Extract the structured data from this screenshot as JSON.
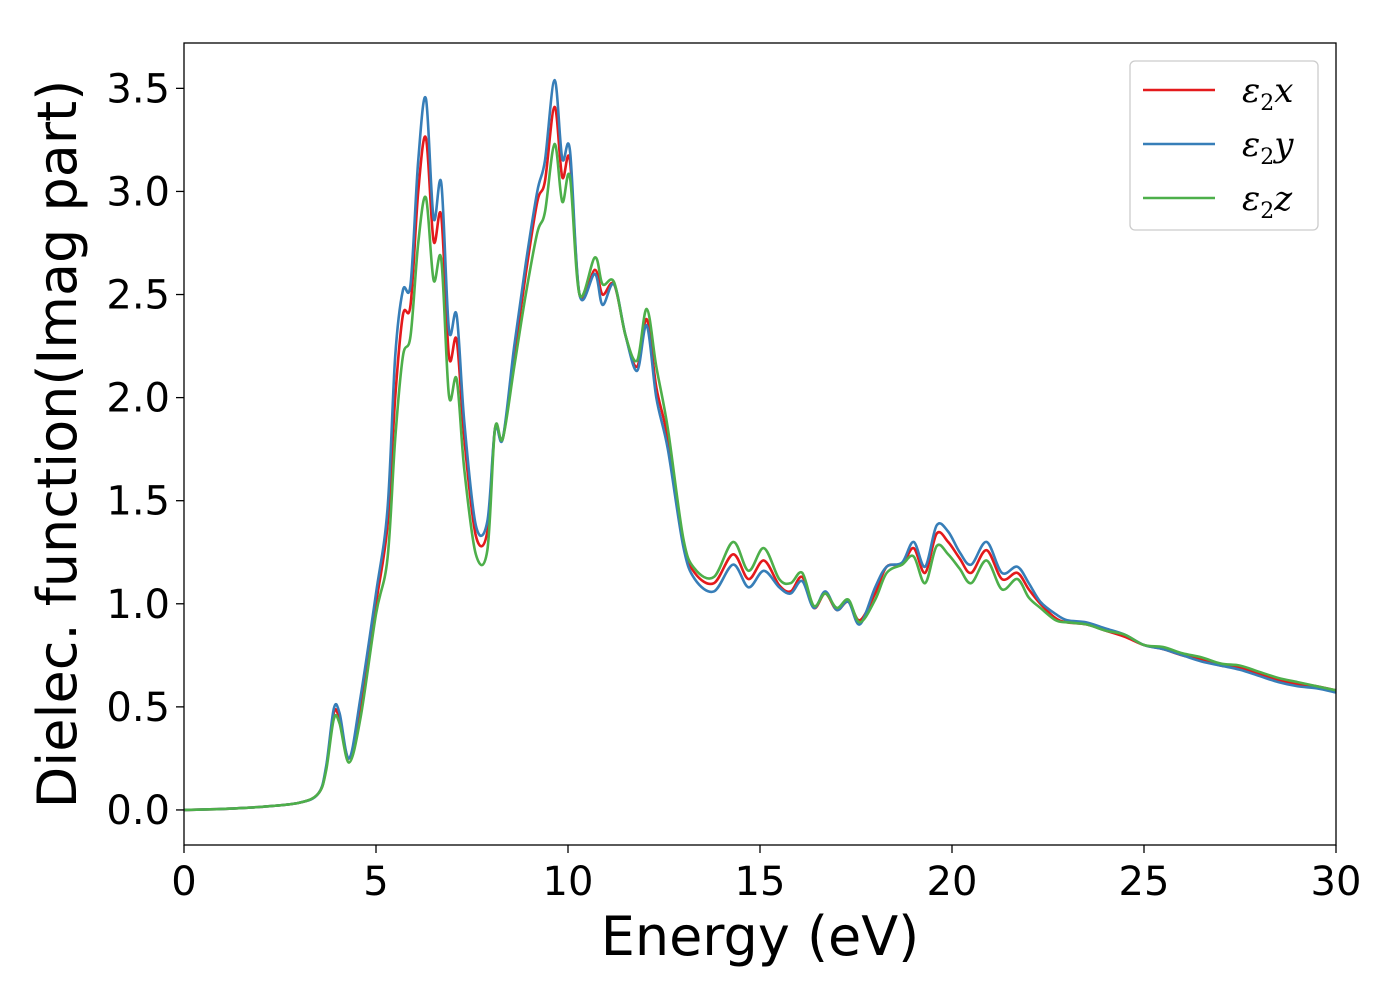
{
  "chart_data": {
    "type": "line",
    "title": "",
    "xlabel": "Energy (eV)",
    "ylabel": "Dielec. function(Imag part)",
    "xlim": [
      0,
      30
    ],
    "ylim": [
      -0.17,
      3.72
    ],
    "xticks": [
      0,
      5,
      10,
      15,
      20,
      25,
      30
    ],
    "xtick_labels": [
      "0",
      "5",
      "10",
      "15",
      "20",
      "25",
      "30"
    ],
    "yticks": [
      0.0,
      0.5,
      1.0,
      1.5,
      2.0,
      2.5,
      3.0,
      3.5
    ],
    "ytick_labels": [
      "0.0",
      "0.5",
      "1.0",
      "1.5",
      "2.0",
      "2.5",
      "3.0",
      "3.5"
    ],
    "grid": false,
    "legend_position": "top-right",
    "x": [
      0,
      1,
      2,
      3,
      3.5,
      3.7,
      3.9,
      4.05,
      4.3,
      4.6,
      5.0,
      5.3,
      5.5,
      5.7,
      5.9,
      6.1,
      6.3,
      6.5,
      6.7,
      6.9,
      7.1,
      7.3,
      7.6,
      7.9,
      8.1,
      8.3,
      8.6,
      8.9,
      9.2,
      9.4,
      9.65,
      9.85,
      10.05,
      10.3,
      10.7,
      10.9,
      11.2,
      11.5,
      11.8,
      12.05,
      12.3,
      12.6,
      13.0,
      13.3,
      13.8,
      14.3,
      14.7,
      15.1,
      15.5,
      15.8,
      16.1,
      16.4,
      16.7,
      17.0,
      17.3,
      17.6,
      18.0,
      18.3,
      18.7,
      19.0,
      19.3,
      19.6,
      19.9,
      20.2,
      20.5,
      20.9,
      21.3,
      21.7,
      22.0,
      22.3,
      22.7,
      23.0,
      23.5,
      24.0,
      24.5,
      25.0,
      25.5,
      26.0,
      26.5,
      27.0,
      27.5,
      28.0,
      28.5,
      29.0,
      29.5,
      30.0
    ],
    "series": [
      {
        "name": "ε2x",
        "color": "#e41a1c",
        "values": [
          0.0,
          0.005,
          0.015,
          0.035,
          0.08,
          0.2,
          0.47,
          0.44,
          0.25,
          0.5,
          1.0,
          1.38,
          2.0,
          2.4,
          2.45,
          3.0,
          3.26,
          2.76,
          2.88,
          2.2,
          2.28,
          1.8,
          1.33,
          1.35,
          1.85,
          1.8,
          2.2,
          2.6,
          2.95,
          3.05,
          3.41,
          3.07,
          3.15,
          2.5,
          2.62,
          2.5,
          2.55,
          2.3,
          2.15,
          2.38,
          2.05,
          1.8,
          1.3,
          1.15,
          1.1,
          1.24,
          1.12,
          1.21,
          1.09,
          1.06,
          1.13,
          0.98,
          1.05,
          0.97,
          1.01,
          0.92,
          1.05,
          1.18,
          1.19,
          1.27,
          1.15,
          1.34,
          1.3,
          1.22,
          1.15,
          1.26,
          1.12,
          1.15,
          1.07,
          1.0,
          0.93,
          0.91,
          0.9,
          0.87,
          0.84,
          0.8,
          0.78,
          0.75,
          0.73,
          0.7,
          0.69,
          0.66,
          0.63,
          0.61,
          0.6,
          0.58
        ]
      },
      {
        "name": "ε2y",
        "color": "#377eb8",
        "values": [
          0.0,
          0.005,
          0.015,
          0.035,
          0.08,
          0.21,
          0.49,
          0.47,
          0.25,
          0.55,
          1.05,
          1.46,
          2.2,
          2.52,
          2.55,
          3.15,
          3.45,
          2.87,
          3.04,
          2.33,
          2.4,
          1.88,
          1.38,
          1.4,
          1.85,
          1.8,
          2.25,
          2.65,
          3.0,
          3.15,
          3.54,
          3.16,
          3.2,
          2.5,
          2.6,
          2.45,
          2.55,
          2.3,
          2.13,
          2.35,
          2.0,
          1.75,
          1.28,
          1.12,
          1.06,
          1.19,
          1.08,
          1.16,
          1.08,
          1.05,
          1.11,
          0.98,
          1.06,
          0.97,
          1.01,
          0.9,
          1.08,
          1.18,
          1.2,
          1.3,
          1.18,
          1.38,
          1.35,
          1.25,
          1.19,
          1.3,
          1.15,
          1.18,
          1.1,
          1.01,
          0.95,
          0.92,
          0.91,
          0.88,
          0.85,
          0.8,
          0.78,
          0.75,
          0.72,
          0.7,
          0.68,
          0.65,
          0.62,
          0.6,
          0.59,
          0.57
        ]
      },
      {
        "name": "ε2z",
        "color": "#4daf4a",
        "values": [
          0.0,
          0.005,
          0.015,
          0.035,
          0.08,
          0.19,
          0.44,
          0.42,
          0.23,
          0.45,
          0.95,
          1.22,
          1.8,
          2.2,
          2.3,
          2.75,
          2.97,
          2.57,
          2.67,
          2.01,
          2.09,
          1.65,
          1.24,
          1.26,
          1.85,
          1.8,
          2.15,
          2.5,
          2.8,
          2.9,
          3.23,
          2.95,
          3.07,
          2.5,
          2.68,
          2.55,
          2.56,
          2.3,
          2.18,
          2.43,
          2.15,
          1.85,
          1.32,
          1.17,
          1.13,
          1.3,
          1.16,
          1.27,
          1.12,
          1.1,
          1.15,
          0.99,
          1.05,
          0.98,
          1.02,
          0.91,
          1.02,
          1.15,
          1.19,
          1.23,
          1.1,
          1.28,
          1.24,
          1.17,
          1.1,
          1.21,
          1.07,
          1.12,
          1.03,
          0.98,
          0.92,
          0.91,
          0.9,
          0.87,
          0.85,
          0.8,
          0.79,
          0.76,
          0.74,
          0.71,
          0.7,
          0.67,
          0.64,
          0.62,
          0.6,
          0.58
        ]
      }
    ]
  }
}
